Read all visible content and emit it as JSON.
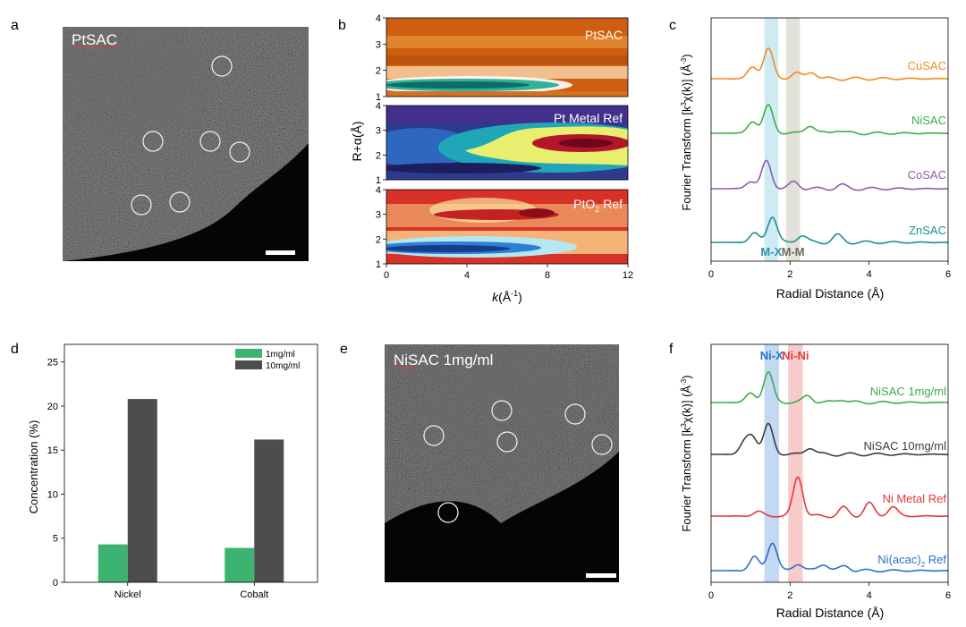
{
  "panel_letters": [
    "a",
    "b",
    "c",
    "d",
    "e",
    "f"
  ],
  "micrographs": {
    "a": {
      "label": "PtSAC"
    },
    "e": {
      "label": "NiSAC 1mg/ml"
    }
  },
  "colors": {
    "cu": "#f28a1e",
    "ni": "#3cae4a",
    "co": "#8b5db0",
    "zn": "#18918a",
    "mx_band": "#bde4ef",
    "mm_band": "#d9d8cc",
    "nix_band": "#aecbef",
    "nini_band": "#f6b9b9",
    "nisac10": "#3c3c3c",
    "nimetal": "#e33a3a",
    "niacac": "#2a70c9",
    "bar_1mg": "#3cb371",
    "bar_10mg": "#4d4d4d"
  },
  "chart_data": [
    {
      "panel": "b",
      "type": "heatmap",
      "xlabel": "k(Å-1)",
      "ylabel": "R+α(Å)",
      "xlim": [
        0,
        12
      ],
      "ylim": [
        1,
        4
      ],
      "xticks": [
        "0",
        "4",
        "8",
        "12"
      ],
      "yticks": [
        "1",
        "2",
        "3",
        "4"
      ],
      "subplots": [
        {
          "label": "PtSAC",
          "colormap": "orange-teal"
        },
        {
          "label": "Pt Metal Ref",
          "colormap": "blue-yellow-red"
        },
        {
          "label": "PtO2 Ref",
          "colormap": "blue-yellow-red"
        }
      ]
    },
    {
      "panel": "c",
      "type": "line",
      "xlabel": "Radial Distance (Å)",
      "ylabel": "Fourier Transform [k3χ(k)] (Å-3)",
      "xlim": [
        0,
        6
      ],
      "xticks": [
        "0",
        "2",
        "4",
        "6"
      ],
      "bands": [
        {
          "label": "M-X",
          "x": [
            1.35,
            1.7
          ]
        },
        {
          "label": "M-M",
          "x": [
            1.9,
            2.25
          ]
        }
      ],
      "series": [
        {
          "name": "CuSAC",
          "peaks": [
            [
              1.05,
              0.5
            ],
            [
              1.45,
              1.3
            ],
            [
              2.15,
              0.25
            ],
            [
              2.55,
              0.3
            ]
          ]
        },
        {
          "name": "NiSAC",
          "peaks": [
            [
              1.05,
              0.5
            ],
            [
              1.45,
              1.2
            ],
            [
              2.5,
              0.35
            ],
            [
              3.2,
              0.15
            ]
          ]
        },
        {
          "name": "CoSAC",
          "peaks": [
            [
              1.0,
              0.3
            ],
            [
              1.4,
              1.2
            ],
            [
              2.1,
              0.3
            ],
            [
              3.3,
              0.15
            ]
          ]
        },
        {
          "name": "ZnSAC",
          "peaks": [
            [
              1.1,
              0.4
            ],
            [
              1.55,
              1.1
            ],
            [
              2.3,
              0.3
            ],
            [
              3.2,
              0.3
            ]
          ]
        }
      ]
    },
    {
      "panel": "d",
      "type": "bar",
      "categories": [
        "Nickel",
        "Cobalt"
      ],
      "series": [
        {
          "name": "1mg/ml",
          "values": [
            4.3,
            3.9
          ]
        },
        {
          "name": "10mg/ml",
          "values": [
            20.8,
            16.2
          ]
        }
      ],
      "ylabel": "Concentration (%)",
      "ylim": [
        0,
        27
      ],
      "yticks": [
        "0",
        "5",
        "10",
        "15",
        "20",
        "25"
      ],
      "legend": "top-right"
    },
    {
      "panel": "f",
      "type": "line",
      "xlabel": "Radial Distance (Å)",
      "ylabel": "Fourier Transform [k3χ(k)] (Å-3)",
      "xlim": [
        0,
        6
      ],
      "xticks": [
        "0",
        "2",
        "4",
        "6"
      ],
      "bands": [
        {
          "label": "Ni-X",
          "x": [
            1.35,
            1.72
          ]
        },
        {
          "label": "Ni-Ni",
          "x": [
            1.95,
            2.32
          ]
        }
      ],
      "series": [
        {
          "name": "NiSAC 1mg/ml",
          "peaks": [
            [
              1.0,
              0.4
            ],
            [
              1.45,
              1.3
            ],
            [
              2.45,
              0.3
            ],
            [
              3.3,
              0.15
            ]
          ]
        },
        {
          "name": "NiSAC 10mg/ml",
          "peaks": [
            [
              0.85,
              0.5
            ],
            [
              1.05,
              0.7
            ],
            [
              1.45,
              1.3
            ],
            [
              2.5,
              0.3
            ]
          ]
        },
        {
          "name": "Ni Metal Ref",
          "peaks": [
            [
              1.2,
              0.2
            ],
            [
              2.2,
              1.7
            ],
            [
              3.35,
              0.35
            ],
            [
              4.0,
              0.55
            ],
            [
              4.6,
              0.4
            ]
          ]
        },
        {
          "name": "Ni(acac)2 Ref",
          "peaks": [
            [
              1.1,
              0.6
            ],
            [
              1.55,
              1.2
            ],
            [
              2.2,
              0.3
            ],
            [
              2.85,
              0.3
            ],
            [
              3.4,
              0.2
            ]
          ]
        }
      ]
    }
  ]
}
